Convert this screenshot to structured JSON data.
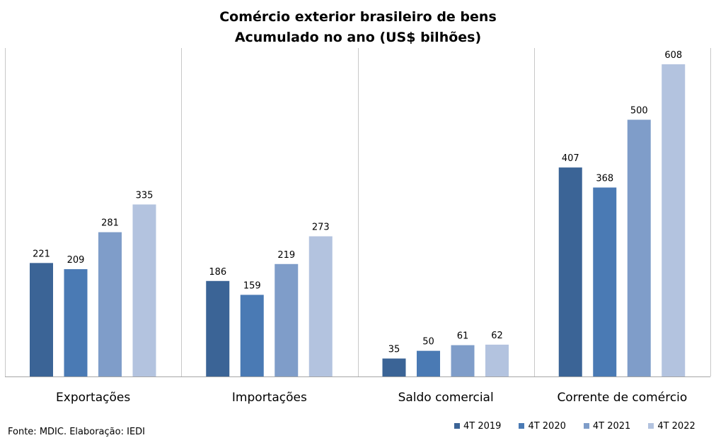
{
  "chart_data": {
    "type": "bar",
    "title": "Comércio exterior brasileiro de bens",
    "subtitle": "Acumulado no ano (US$ bilhões)",
    "categories": [
      "Exportações",
      "Importações",
      "Saldo comercial",
      "Corrente de comércio"
    ],
    "series": [
      {
        "name": "4T 2019",
        "color": "#3b6496",
        "values": [
          221,
          186,
          35,
          407
        ]
      },
      {
        "name": "4T 2020",
        "color": "#4a7ab4",
        "values": [
          209,
          159,
          50,
          368
        ]
      },
      {
        "name": "4T 2021",
        "color": "#7f9dc9",
        "values": [
          281,
          219,
          61,
          500
        ]
      },
      {
        "name": "4T 2022",
        "color": "#b3c3df",
        "values": [
          335,
          273,
          62,
          608
        ]
      }
    ],
    "ylim": [
      0,
      640
    ],
    "grid": false,
    "legend_position": "bottom-right",
    "source": "Fonte: MDIC. Elaboração: IEDI"
  }
}
